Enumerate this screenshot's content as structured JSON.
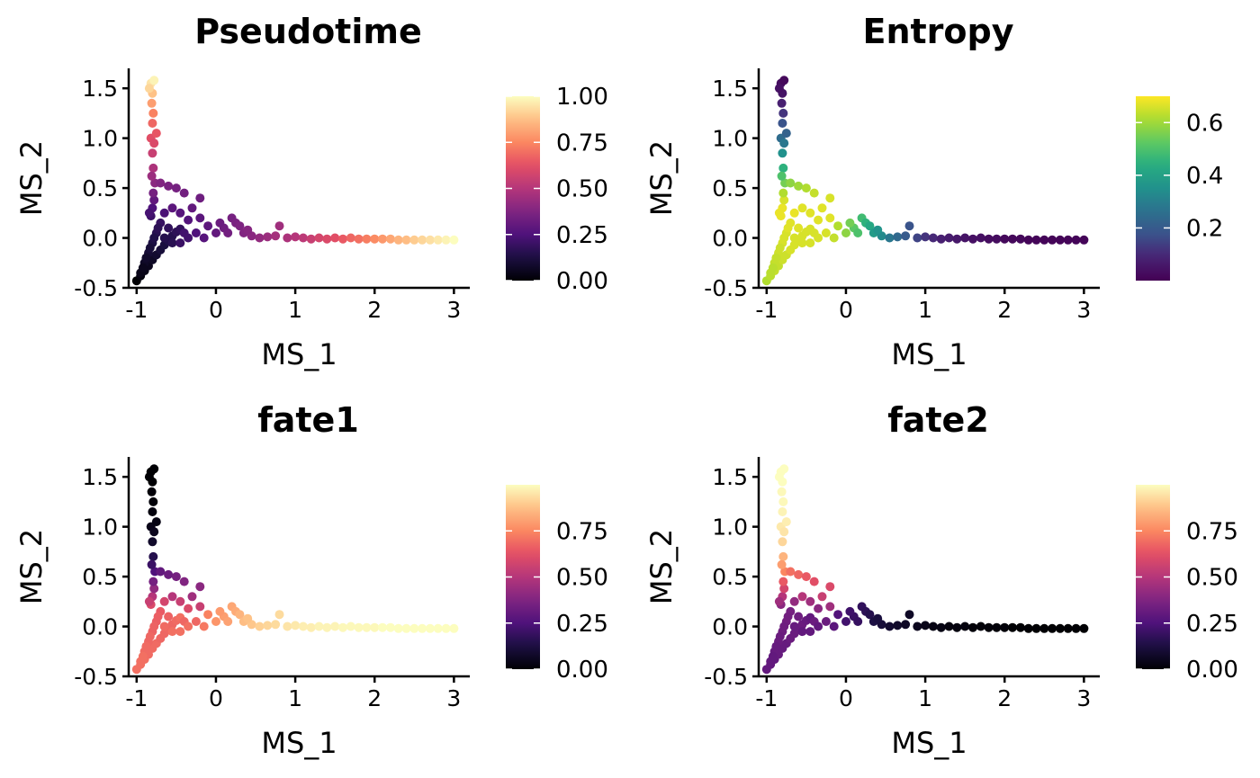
{
  "chart_data": [
    {
      "type": "scatter",
      "title": "Pseudotime",
      "xlabel": "MS_1",
      "ylabel": "MS_2",
      "xlim": [
        -1.1,
        3.2
      ],
      "ylim": [
        -0.5,
        1.7
      ],
      "xticks": [
        "-1",
        "0",
        "1",
        "2",
        "3"
      ],
      "yticks": [
        "-0.5",
        "0.0",
        "0.5",
        "1.0",
        "1.5"
      ],
      "colormap": "magma",
      "color_range": [
        0,
        1
      ],
      "colorbar_ticks": [
        "0.00",
        "0.25",
        "0.50",
        "0.75",
        "1.00"
      ],
      "color_variable": "pseudotime",
      "grid": false,
      "legend": "colorbar-right"
    },
    {
      "type": "scatter",
      "title": "Entropy",
      "xlabel": "MS_1",
      "ylabel": "MS_2",
      "xlim": [
        -1.1,
        3.2
      ],
      "ylim": [
        -0.5,
        1.7
      ],
      "xticks": [
        "-1",
        "0",
        "1",
        "2",
        "3"
      ],
      "yticks": [
        "-0.5",
        "0.0",
        "0.5",
        "1.0",
        "1.5"
      ],
      "colormap": "viridis",
      "color_range": [
        0,
        0.7
      ],
      "colorbar_ticks": [
        "0.2",
        "0.4",
        "0.6"
      ],
      "color_variable": "entropy",
      "grid": false,
      "legend": "colorbar-right"
    },
    {
      "type": "scatter",
      "title": "fate1",
      "xlabel": "MS_1",
      "ylabel": "MS_2",
      "xlim": [
        -1.1,
        3.2
      ],
      "ylim": [
        -0.5,
        1.7
      ],
      "xticks": [
        "-1",
        "0",
        "1",
        "2",
        "3"
      ],
      "yticks": [
        "-0.5",
        "0.0",
        "0.5",
        "1.0",
        "1.5"
      ],
      "colormap": "magma",
      "color_range": [
        0,
        1
      ],
      "colorbar_ticks": [
        "0.00",
        "0.25",
        "0.50",
        "0.75"
      ],
      "color_variable": "fate1",
      "grid": false,
      "legend": "colorbar-right"
    },
    {
      "type": "scatter",
      "title": "fate2",
      "xlabel": "MS_1",
      "ylabel": "MS_2",
      "xlim": [
        -1.1,
        3.2
      ],
      "ylim": [
        -0.5,
        1.7
      ],
      "xticks": [
        "-1",
        "0",
        "1",
        "2",
        "3"
      ],
      "yticks": [
        "-0.5",
        "0.0",
        "0.5",
        "1.0",
        "1.5"
      ],
      "colormap": "magma",
      "color_range": [
        0,
        1
      ],
      "colorbar_ticks": [
        "0.00",
        "0.25",
        "0.50",
        "0.75"
      ],
      "color_variable": "fate2",
      "grid": false,
      "legend": "colorbar-right"
    }
  ],
  "points": [
    {
      "x": -1.0,
      "y": -0.43,
      "pt": 0.0,
      "ent": 0.62,
      "f1": 0.7,
      "f2": 0.3
    },
    {
      "x": -0.95,
      "y": -0.38,
      "pt": 0.02,
      "ent": 0.63,
      "f1": 0.7,
      "f2": 0.3
    },
    {
      "x": -0.9,
      "y": -0.33,
      "pt": 0.04,
      "ent": 0.64,
      "f1": 0.7,
      "f2": 0.3
    },
    {
      "x": -0.85,
      "y": -0.28,
      "pt": 0.05,
      "ent": 0.64,
      "f1": 0.69,
      "f2": 0.31
    },
    {
      "x": -0.8,
      "y": -0.22,
      "pt": 0.07,
      "ent": 0.65,
      "f1": 0.69,
      "f2": 0.31
    },
    {
      "x": -0.75,
      "y": -0.17,
      "pt": 0.09,
      "ent": 0.65,
      "f1": 0.69,
      "f2": 0.31
    },
    {
      "x": -0.7,
      "y": -0.12,
      "pt": 0.11,
      "ent": 0.66,
      "f1": 0.68,
      "f2": 0.32
    },
    {
      "x": -0.65,
      "y": -0.07,
      "pt": 0.12,
      "ent": 0.66,
      "f1": 0.68,
      "f2": 0.32
    },
    {
      "x": -0.6,
      "y": -0.03,
      "pt": 0.14,
      "ent": 0.66,
      "f1": 0.68,
      "f2": 0.32
    },
    {
      "x": -0.55,
      "y": 0.02,
      "pt": 0.15,
      "ent": 0.66,
      "f1": 0.68,
      "f2": 0.32
    },
    {
      "x": -0.5,
      "y": 0.06,
      "pt": 0.17,
      "ent": 0.66,
      "f1": 0.69,
      "f2": 0.31
    },
    {
      "x": -0.45,
      "y": 0.09,
      "pt": 0.18,
      "ent": 0.66,
      "f1": 0.7,
      "f2": 0.3
    },
    {
      "x": -0.95,
      "y": -0.35,
      "pt": 0.04,
      "ent": 0.63,
      "f1": 0.7,
      "f2": 0.3
    },
    {
      "x": -0.9,
      "y": -0.25,
      "pt": 0.07,
      "ent": 0.64,
      "f1": 0.69,
      "f2": 0.31
    },
    {
      "x": -0.85,
      "y": -0.15,
      "pt": 0.1,
      "ent": 0.65,
      "f1": 0.68,
      "f2": 0.32
    },
    {
      "x": -0.8,
      "y": -0.05,
      "pt": 0.13,
      "ent": 0.66,
      "f1": 0.67,
      "f2": 0.33
    },
    {
      "x": -0.75,
      "y": 0.05,
      "pt": 0.16,
      "ent": 0.66,
      "f1": 0.66,
      "f2": 0.34
    },
    {
      "x": -0.7,
      "y": 0.15,
      "pt": 0.19,
      "ent": 0.67,
      "f1": 0.65,
      "f2": 0.35
    },
    {
      "x": -0.92,
      "y": -0.3,
      "pt": 0.05,
      "ent": 0.63,
      "f1": 0.7,
      "f2": 0.3
    },
    {
      "x": -0.88,
      "y": -0.2,
      "pt": 0.08,
      "ent": 0.64,
      "f1": 0.69,
      "f2": 0.31
    },
    {
      "x": -0.83,
      "y": -0.1,
      "pt": 0.11,
      "ent": 0.65,
      "f1": 0.68,
      "f2": 0.32
    },
    {
      "x": -0.78,
      "y": 0.0,
      "pt": 0.14,
      "ent": 0.66,
      "f1": 0.67,
      "f2": 0.33
    },
    {
      "x": -0.73,
      "y": 0.1,
      "pt": 0.17,
      "ent": 0.67,
      "f1": 0.66,
      "f2": 0.34
    },
    {
      "x": -0.65,
      "y": 0.0,
      "pt": 0.15,
      "ent": 0.66,
      "f1": 0.69,
      "f2": 0.31
    },
    {
      "x": -0.55,
      "y": -0.05,
      "pt": 0.16,
      "ent": 0.66,
      "f1": 0.7,
      "f2": 0.3
    },
    {
      "x": -0.6,
      "y": 0.1,
      "pt": 0.18,
      "ent": 0.67,
      "f1": 0.67,
      "f2": 0.33
    },
    {
      "x": -0.82,
      "y": 0.22,
      "pt": 0.21,
      "ent": 0.68,
      "f1": 0.6,
      "f2": 0.4
    },
    {
      "x": -0.8,
      "y": 0.3,
      "pt": 0.25,
      "ent": 0.68,
      "f1": 0.5,
      "f2": 0.5
    },
    {
      "x": -0.78,
      "y": 0.38,
      "pt": 0.3,
      "ent": 0.66,
      "f1": 0.42,
      "f2": 0.58
    },
    {
      "x": -0.84,
      "y": 0.25,
      "pt": 0.23,
      "ent": 0.68,
      "f1": 0.55,
      "f2": 0.45
    },
    {
      "x": -0.79,
      "y": 0.45,
      "pt": 0.35,
      "ent": 0.62,
      "f1": 0.35,
      "f2": 0.65
    },
    {
      "x": -0.77,
      "y": 0.55,
      "pt": 0.4,
      "ent": 0.55,
      "f1": 0.25,
      "f2": 0.75
    },
    {
      "x": -0.79,
      "y": 0.7,
      "pt": 0.48,
      "ent": 0.45,
      "f1": 0.15,
      "f2": 0.85
    },
    {
      "x": -0.8,
      "y": 0.85,
      "pt": 0.55,
      "ent": 0.35,
      "f1": 0.08,
      "f2": 0.92
    },
    {
      "x": -0.82,
      "y": 1.0,
      "pt": 0.62,
      "ent": 0.25,
      "f1": 0.04,
      "f2": 0.96
    },
    {
      "x": -0.75,
      "y": 1.05,
      "pt": 0.64,
      "ent": 0.22,
      "f1": 0.03,
      "f2": 0.97
    },
    {
      "x": -0.8,
      "y": 1.15,
      "pt": 0.68,
      "ent": 0.18,
      "f1": 0.02,
      "f2": 0.98
    },
    {
      "x": -0.79,
      "y": 1.25,
      "pt": 0.74,
      "ent": 0.12,
      "f1": 0.01,
      "f2": 0.99
    },
    {
      "x": -0.81,
      "y": 1.35,
      "pt": 0.8,
      "ent": 0.08,
      "f1": 0.01,
      "f2": 0.99
    },
    {
      "x": -0.8,
      "y": 1.45,
      "pt": 0.88,
      "ent": 0.05,
      "f1": 0.0,
      "f2": 1.0
    },
    {
      "x": -0.82,
      "y": 1.55,
      "pt": 0.95,
      "ent": 0.03,
      "f1": 0.0,
      "f2": 1.0
    },
    {
      "x": -0.78,
      "y": 1.58,
      "pt": 0.98,
      "ent": 0.02,
      "f1": 0.0,
      "f2": 1.0
    },
    {
      "x": -0.84,
      "y": 1.5,
      "pt": 0.92,
      "ent": 0.04,
      "f1": 0.0,
      "f2": 1.0
    },
    {
      "x": -0.78,
      "y": 0.95,
      "pt": 0.6,
      "ent": 0.28,
      "f1": 0.05,
      "f2": 0.95
    },
    {
      "x": -0.81,
      "y": 0.62,
      "pt": 0.44,
      "ent": 0.5,
      "f1": 0.2,
      "f2": 0.8
    },
    {
      "x": -0.7,
      "y": 0.55,
      "pt": 0.38,
      "ent": 0.58,
      "f1": 0.3,
      "f2": 0.7
    },
    {
      "x": -0.6,
      "y": 0.52,
      "pt": 0.36,
      "ent": 0.6,
      "f1": 0.32,
      "f2": 0.68
    },
    {
      "x": -0.5,
      "y": 0.5,
      "pt": 0.35,
      "ent": 0.62,
      "f1": 0.35,
      "f2": 0.65
    },
    {
      "x": -0.4,
      "y": 0.45,
      "pt": 0.34,
      "ent": 0.64,
      "f1": 0.38,
      "f2": 0.62
    },
    {
      "x": -0.2,
      "y": 0.4,
      "pt": 0.33,
      "ent": 0.66,
      "f1": 0.4,
      "f2": 0.6
    },
    {
      "x": -0.3,
      "y": 0.3,
      "pt": 0.3,
      "ent": 0.67,
      "f1": 0.45,
      "f2": 0.55
    },
    {
      "x": -0.2,
      "y": 0.2,
      "pt": 0.28,
      "ent": 0.67,
      "f1": 0.55,
      "f2": 0.45
    },
    {
      "x": -0.35,
      "y": 0.18,
      "pt": 0.26,
      "ent": 0.67,
      "f1": 0.6,
      "f2": 0.4
    },
    {
      "x": -0.25,
      "y": 0.05,
      "pt": 0.25,
      "ent": 0.66,
      "f1": 0.68,
      "f2": 0.32
    },
    {
      "x": -0.15,
      "y": 0.0,
      "pt": 0.27,
      "ent": 0.64,
      "f1": 0.72,
      "f2": 0.28
    },
    {
      "x": 0.0,
      "y": 0.05,
      "pt": 0.3,
      "ent": 0.58,
      "f1": 0.78,
      "f2": 0.22
    },
    {
      "x": 0.1,
      "y": 0.1,
      "pt": 0.33,
      "ent": 0.52,
      "f1": 0.8,
      "f2": 0.2
    },
    {
      "x": 0.2,
      "y": 0.2,
      "pt": 0.35,
      "ent": 0.48,
      "f1": 0.82,
      "f2": 0.18
    },
    {
      "x": 0.25,
      "y": 0.15,
      "pt": 0.36,
      "ent": 0.45,
      "f1": 0.83,
      "f2": 0.17
    },
    {
      "x": 0.3,
      "y": 0.12,
      "pt": 0.37,
      "ent": 0.42,
      "f1": 0.85,
      "f2": 0.15
    },
    {
      "x": 0.35,
      "y": 0.05,
      "pt": 0.38,
      "ent": 0.38,
      "f1": 0.87,
      "f2": 0.13
    },
    {
      "x": 0.45,
      "y": 0.02,
      "pt": 0.4,
      "ent": 0.33,
      "f1": 0.89,
      "f2": 0.11
    },
    {
      "x": 0.55,
      "y": 0.0,
      "pt": 0.42,
      "ent": 0.28,
      "f1": 0.91,
      "f2": 0.09
    },
    {
      "x": 0.65,
      "y": 0.01,
      "pt": 0.44,
      "ent": 0.24,
      "f1": 0.92,
      "f2": 0.08
    },
    {
      "x": 0.75,
      "y": 0.02,
      "pt": 0.46,
      "ent": 0.2,
      "f1": 0.93,
      "f2": 0.07
    },
    {
      "x": 0.8,
      "y": 0.12,
      "pt": 0.45,
      "ent": 0.18,
      "f1": 0.93,
      "f2": 0.07
    },
    {
      "x": 0.9,
      "y": 0.0,
      "pt": 0.48,
      "ent": 0.15,
      "f1": 0.95,
      "f2": 0.05
    },
    {
      "x": 1.0,
      "y": 0.01,
      "pt": 0.5,
      "ent": 0.12,
      "f1": 0.96,
      "f2": 0.04
    },
    {
      "x": 1.1,
      "y": 0.0,
      "pt": 0.52,
      "ent": 0.1,
      "f1": 0.97,
      "f2": 0.03
    },
    {
      "x": 1.2,
      "y": -0.01,
      "pt": 0.55,
      "ent": 0.08,
      "f1": 0.97,
      "f2": 0.03
    },
    {
      "x": 1.3,
      "y": 0.0,
      "pt": 0.58,
      "ent": 0.07,
      "f1": 0.98,
      "f2": 0.02
    },
    {
      "x": 1.4,
      "y": -0.01,
      "pt": 0.6,
      "ent": 0.06,
      "f1": 0.98,
      "f2": 0.02
    },
    {
      "x": 1.5,
      "y": 0.0,
      "pt": 0.62,
      "ent": 0.05,
      "f1": 0.98,
      "f2": 0.02
    },
    {
      "x": 1.6,
      "y": -0.01,
      "pt": 0.65,
      "ent": 0.04,
      "f1": 0.99,
      "f2": 0.01
    },
    {
      "x": 1.7,
      "y": 0.0,
      "pt": 0.68,
      "ent": 0.04,
      "f1": 0.99,
      "f2": 0.01
    },
    {
      "x": 1.8,
      "y": -0.01,
      "pt": 0.7,
      "ent": 0.03,
      "f1": 0.99,
      "f2": 0.01
    },
    {
      "x": 1.9,
      "y": -0.01,
      "pt": 0.73,
      "ent": 0.03,
      "f1": 0.99,
      "f2": 0.01
    },
    {
      "x": 2.0,
      "y": -0.01,
      "pt": 0.76,
      "ent": 0.02,
      "f1": 0.99,
      "f2": 0.01
    },
    {
      "x": 2.1,
      "y": -0.01,
      "pt": 0.79,
      "ent": 0.02,
      "f1": 1.0,
      "f2": 0.0
    },
    {
      "x": 2.2,
      "y": -0.01,
      "pt": 0.82,
      "ent": 0.02,
      "f1": 1.0,
      "f2": 0.0
    },
    {
      "x": 2.3,
      "y": -0.02,
      "pt": 0.85,
      "ent": 0.01,
      "f1": 1.0,
      "f2": 0.0
    },
    {
      "x": 2.4,
      "y": -0.02,
      "pt": 0.87,
      "ent": 0.01,
      "f1": 1.0,
      "f2": 0.0
    },
    {
      "x": 2.5,
      "y": -0.02,
      "pt": 0.9,
      "ent": 0.01,
      "f1": 1.0,
      "f2": 0.0
    },
    {
      "x": 2.6,
      "y": -0.02,
      "pt": 0.92,
      "ent": 0.01,
      "f1": 1.0,
      "f2": 0.0
    },
    {
      "x": 2.7,
      "y": -0.02,
      "pt": 0.94,
      "ent": 0.01,
      "f1": 1.0,
      "f2": 0.0
    },
    {
      "x": 2.8,
      "y": -0.02,
      "pt": 0.96,
      "ent": 0.01,
      "f1": 1.0,
      "f2": 0.0
    },
    {
      "x": 2.9,
      "y": -0.02,
      "pt": 0.98,
      "ent": 0.01,
      "f1": 1.0,
      "f2": 0.0
    },
    {
      "x": 3.0,
      "y": -0.02,
      "pt": 1.0,
      "ent": 0.01,
      "f1": 1.0,
      "f2": 0.0
    },
    {
      "x": 0.4,
      "y": 0.08,
      "pt": 0.39,
      "ent": 0.36,
      "f1": 0.88,
      "f2": 0.12
    },
    {
      "x": 0.15,
      "y": 0.05,
      "pt": 0.34,
      "ent": 0.5,
      "f1": 0.81,
      "f2": 0.19
    },
    {
      "x": 0.05,
      "y": 0.15,
      "pt": 0.32,
      "ent": 0.55,
      "f1": 0.79,
      "f2": 0.21
    },
    {
      "x": -0.1,
      "y": 0.12,
      "pt": 0.29,
      "ent": 0.62,
      "f1": 0.74,
      "f2": 0.26
    },
    {
      "x": -0.45,
      "y": 0.25,
      "pt": 0.27,
      "ent": 0.67,
      "f1": 0.55,
      "f2": 0.45
    },
    {
      "x": -0.55,
      "y": 0.3,
      "pt": 0.28,
      "ent": 0.67,
      "f1": 0.5,
      "f2": 0.5
    },
    {
      "x": -0.65,
      "y": 0.25,
      "pt": 0.24,
      "ent": 0.68,
      "f1": 0.58,
      "f2": 0.42
    },
    {
      "x": -0.4,
      "y": 0.05,
      "pt": 0.22,
      "ent": 0.66,
      "f1": 0.68,
      "f2": 0.32
    },
    {
      "x": -0.45,
      "y": -0.05,
      "pt": 0.2,
      "ent": 0.66,
      "f1": 0.7,
      "f2": 0.3
    },
    {
      "x": -0.35,
      "y": 0.0,
      "pt": 0.22,
      "ent": 0.66,
      "f1": 0.7,
      "f2": 0.3
    }
  ]
}
